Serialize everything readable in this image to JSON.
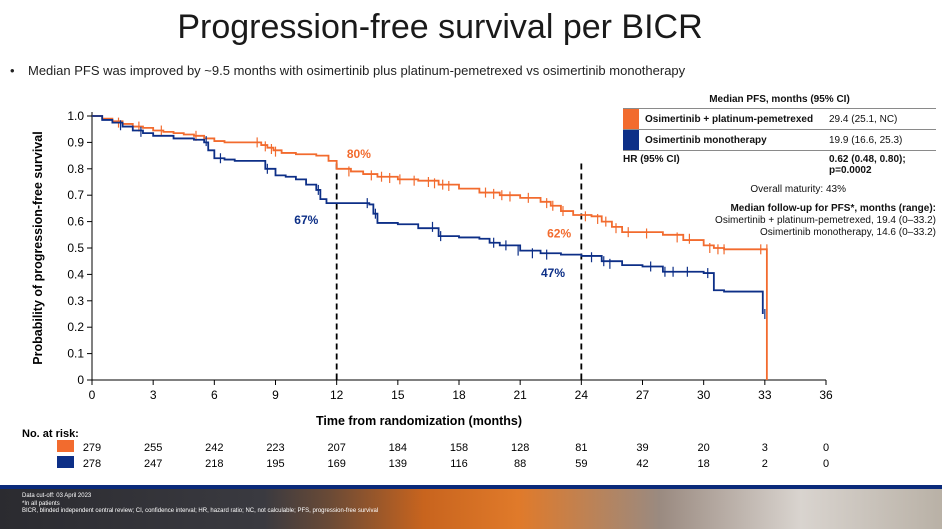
{
  "title": "Progression-free survival per BICR",
  "bullet": "Median PFS was improved by ~9.5 months with osimertinib plus platinum-pemetrexed vs osimertinib monotherapy",
  "legend": {
    "header": "Median PFS, months (95% CI)",
    "rows": [
      {
        "arm": "Osimertinib + platinum-pemetrexed",
        "value": "29.4 (25.1, NC)",
        "color": "#f26b2e"
      },
      {
        "arm": "Osimertinib monotherapy",
        "value": "19.9 (16.6, 25.3)",
        "color": "#0d2f87"
      }
    ],
    "hr_label": "HR (95% CI)",
    "hr_value_line1": "0.62 (0.48, 0.80);",
    "hr_value_line2": "p=0.0002"
  },
  "maturity": "Overall maturity: 43%",
  "followup": {
    "header": "Median follow-up for PFS*, months (range):",
    "line1": "Osimertinib + platinum-pemetrexed, 19.4 (0–33.2)",
    "line2": "Osimertinib monotherapy, 14.6 (0–33.2)"
  },
  "at_risk_label": "No. at risk:",
  "footnotes": {
    "line1": "Data cut-off: 03 April 2023",
    "line2": "*In all patients",
    "line3": "BICR, blinded independent central review; CI, confidence interval; HR, hazard ratio; NC, not calculable; PFS, progression-free survival"
  },
  "chart_data": {
    "type": "line",
    "title": "",
    "xlabel": "Time from randomization (months)",
    "ylabel": "Probability of progression-free survival",
    "xlim": [
      0,
      36
    ],
    "ylim": [
      0,
      1.0
    ],
    "xticks": [
      0,
      3,
      6,
      9,
      12,
      15,
      18,
      21,
      24,
      27,
      30,
      33,
      36
    ],
    "yticks": [
      0,
      0.1,
      0.2,
      0.3,
      0.4,
      0.5,
      0.6,
      0.7,
      0.8,
      0.9,
      1.0
    ],
    "grid": false,
    "series": [
      {
        "name": "Osimertinib + platinum-pemetrexed",
        "color": "#f26b2e",
        "steps": [
          [
            0,
            1.0
          ],
          [
            0.5,
            0.99
          ],
          [
            1,
            0.98
          ],
          [
            1.5,
            0.97
          ],
          [
            2,
            0.96
          ],
          [
            2.5,
            0.955
          ],
          [
            3,
            0.945
          ],
          [
            3.5,
            0.94
          ],
          [
            4,
            0.935
          ],
          [
            4.5,
            0.93
          ],
          [
            5,
            0.925
          ],
          [
            5.5,
            0.915
          ],
          [
            6,
            0.905
          ],
          [
            6.5,
            0.9
          ],
          [
            7,
            0.9
          ],
          [
            8,
            0.9
          ],
          [
            8.3,
            0.89
          ],
          [
            8.6,
            0.88
          ],
          [
            8.9,
            0.87
          ],
          [
            9.3,
            0.86
          ],
          [
            10,
            0.855
          ],
          [
            11,
            0.85
          ],
          [
            11.6,
            0.83
          ],
          [
            12,
            0.8
          ],
          [
            12.7,
            0.79
          ],
          [
            13.3,
            0.78
          ],
          [
            14,
            0.77
          ],
          [
            15,
            0.76
          ],
          [
            16,
            0.755
          ],
          [
            17,
            0.74
          ],
          [
            18,
            0.725
          ],
          [
            19,
            0.71
          ],
          [
            20,
            0.7
          ],
          [
            21,
            0.69
          ],
          [
            22,
            0.675
          ],
          [
            22.5,
            0.66
          ],
          [
            23,
            0.64
          ],
          [
            23.6,
            0.625
          ],
          [
            24.5,
            0.62
          ],
          [
            25,
            0.6
          ],
          [
            25.5,
            0.58
          ],
          [
            26,
            0.56
          ],
          [
            27,
            0.56
          ],
          [
            28,
            0.55
          ],
          [
            29,
            0.53
          ],
          [
            30,
            0.51
          ],
          [
            30.5,
            0.5
          ],
          [
            31,
            0.495
          ],
          [
            33.1,
            0.495
          ],
          [
            33.1,
            0
          ]
        ],
        "censors": [
          [
            1.3,
            0.975
          ],
          [
            2.3,
            0.96
          ],
          [
            3.4,
            0.945
          ],
          [
            5.1,
            0.925
          ],
          [
            8.1,
            0.9
          ],
          [
            8.5,
            0.885
          ],
          [
            8.8,
            0.875
          ],
          [
            9,
            0.865
          ],
          [
            12.6,
            0.79
          ],
          [
            13.7,
            0.775
          ],
          [
            14.2,
            0.77
          ],
          [
            14.6,
            0.765
          ],
          [
            15.1,
            0.76
          ],
          [
            15.8,
            0.755
          ],
          [
            16.5,
            0.75
          ],
          [
            16.8,
            0.745
          ],
          [
            17.2,
            0.74
          ],
          [
            17.5,
            0.735
          ],
          [
            19.3,
            0.71
          ],
          [
            19.7,
            0.705
          ],
          [
            20.1,
            0.7
          ],
          [
            20.5,
            0.695
          ],
          [
            21.4,
            0.69
          ],
          [
            22.3,
            0.67
          ],
          [
            22.6,
            0.66
          ],
          [
            23.1,
            0.64
          ],
          [
            24.2,
            0.62
          ],
          [
            24.8,
            0.61
          ],
          [
            25.2,
            0.6
          ],
          [
            25.7,
            0.575
          ],
          [
            26.3,
            0.56
          ],
          [
            27.2,
            0.555
          ],
          [
            28.7,
            0.54
          ],
          [
            29.3,
            0.535
          ],
          [
            30.3,
            0.5
          ],
          [
            30.7,
            0.495
          ],
          [
            31,
            0.495
          ],
          [
            32.8,
            0.495
          ],
          [
            33.1,
            0.495
          ]
        ],
        "at_risk": [
          279,
          255,
          242,
          223,
          207,
          184,
          158,
          128,
          81,
          39,
          20,
          3,
          0
        ],
        "label_12m": "80%",
        "label_24m": "62%"
      },
      {
        "name": "Osimertinib monotherapy",
        "color": "#0d2f87",
        "steps": [
          [
            0,
            1.0
          ],
          [
            0.5,
            0.985
          ],
          [
            1,
            0.975
          ],
          [
            1.5,
            0.96
          ],
          [
            2,
            0.945
          ],
          [
            2.5,
            0.935
          ],
          [
            3,
            0.925
          ],
          [
            4,
            0.915
          ],
          [
            5,
            0.91
          ],
          [
            5.5,
            0.9
          ],
          [
            5.7,
            0.87
          ],
          [
            6,
            0.84
          ],
          [
            6.5,
            0.835
          ],
          [
            7,
            0.83
          ],
          [
            8,
            0.83
          ],
          [
            8.5,
            0.8
          ],
          [
            9,
            0.775
          ],
          [
            9.5,
            0.77
          ],
          [
            10,
            0.76
          ],
          [
            10.5,
            0.74
          ],
          [
            11,
            0.72
          ],
          [
            11.2,
            0.685
          ],
          [
            11.5,
            0.67
          ],
          [
            12,
            0.67
          ],
          [
            13,
            0.67
          ],
          [
            13.6,
            0.665
          ],
          [
            13.8,
            0.63
          ],
          [
            14,
            0.595
          ],
          [
            15,
            0.59
          ],
          [
            16,
            0.575
          ],
          [
            17,
            0.545
          ],
          [
            18,
            0.54
          ],
          [
            19,
            0.535
          ],
          [
            19.5,
            0.52
          ],
          [
            20,
            0.51
          ],
          [
            21,
            0.49
          ],
          [
            22,
            0.48
          ],
          [
            23,
            0.475
          ],
          [
            24,
            0.47
          ],
          [
            25,
            0.45
          ],
          [
            26,
            0.435
          ],
          [
            27,
            0.43
          ],
          [
            28,
            0.41
          ],
          [
            29,
            0.41
          ],
          [
            30,
            0.405
          ],
          [
            30.5,
            0.34
          ],
          [
            31,
            0.335
          ],
          [
            32,
            0.335
          ],
          [
            32.8,
            0.335
          ],
          [
            32.9,
            0.25
          ]
        ],
        "censors": [
          [
            1.4,
            0.965
          ],
          [
            2.4,
            0.94
          ],
          [
            5.6,
            0.905
          ],
          [
            6.3,
            0.84
          ],
          [
            8.6,
            0.8
          ],
          [
            11.1,
            0.72
          ],
          [
            13.5,
            0.67
          ],
          [
            13.9,
            0.63
          ],
          [
            16.7,
            0.58
          ],
          [
            17.1,
            0.545
          ],
          [
            19.7,
            0.52
          ],
          [
            20.3,
            0.51
          ],
          [
            20.9,
            0.49
          ],
          [
            21.6,
            0.48
          ],
          [
            22.3,
            0.475
          ],
          [
            24.5,
            0.465
          ],
          [
            25.1,
            0.45
          ],
          [
            25.4,
            0.44
          ],
          [
            27.4,
            0.43
          ],
          [
            28.1,
            0.41
          ],
          [
            28.5,
            0.41
          ],
          [
            29.2,
            0.41
          ],
          [
            30.2,
            0.405
          ],
          [
            33,
            0.25
          ]
        ],
        "at_risk": [
          278,
          247,
          218,
          195,
          169,
          139,
          116,
          88,
          59,
          42,
          18,
          2,
          0
        ],
        "label_12m": "67%",
        "label_24m": "47%"
      }
    ],
    "reference_lines_x": [
      12,
      24
    ]
  }
}
